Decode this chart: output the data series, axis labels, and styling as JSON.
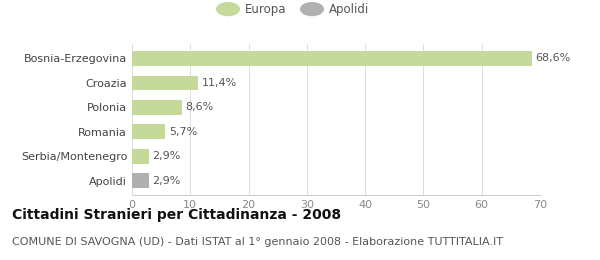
{
  "categories": [
    "Bosnia-Erzegovina",
    "Croazia",
    "Polonia",
    "Romania",
    "Serbia/Montenegro",
    "Apolidi"
  ],
  "values": [
    68.6,
    11.4,
    8.6,
    5.7,
    2.9,
    2.9
  ],
  "labels": [
    "68,6%",
    "11,4%",
    "8,6%",
    "5,7%",
    "2,9%",
    "2,9%"
  ],
  "colors": [
    "#c5d99a",
    "#c5d99a",
    "#c5d99a",
    "#c5d99a",
    "#c5d99a",
    "#b0b0b0"
  ],
  "legend_items": [
    {
      "label": "Europa",
      "color": "#c5d99a"
    },
    {
      "label": "Apolidi",
      "color": "#b0b0b0"
    }
  ],
  "xlim": [
    0,
    70
  ],
  "xticks": [
    0,
    10,
    20,
    30,
    40,
    50,
    60,
    70
  ],
  "title": "Cittadini Stranieri per Cittadinanza - 2008",
  "subtitle": "COMUNE DI SAVOGNA (UD) - Dati ISTAT al 1° gennaio 2008 - Elaborazione TUTTITALIA.IT",
  "page_bg": "#ffffff",
  "chart_bg": "#ffffff",
  "title_fontsize": 10,
  "subtitle_fontsize": 8,
  "label_fontsize": 8,
  "tick_fontsize": 8,
  "legend_fontsize": 8.5
}
